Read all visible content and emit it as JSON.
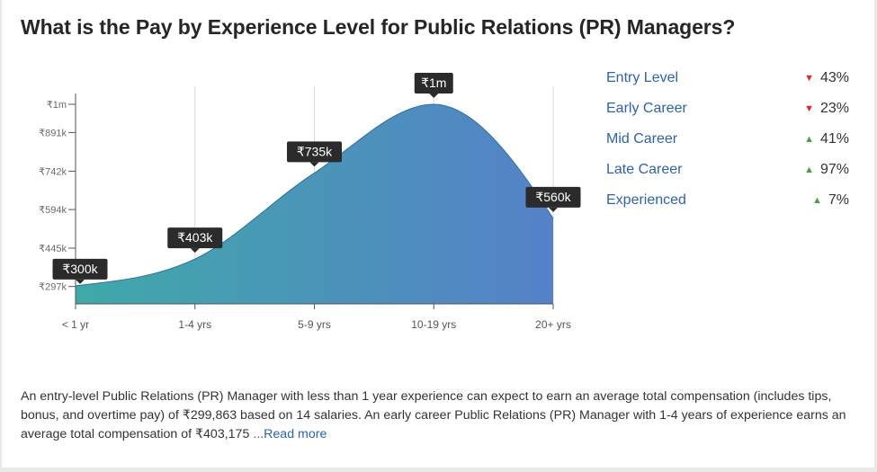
{
  "page": {
    "title": "What is the Pay by Experience Level for Public Relations (PR) Managers?"
  },
  "chart_data": {
    "type": "area",
    "x": [
      "< 1 yr",
      "1-4 yrs",
      "5-9 yrs",
      "10-19 yrs",
      "20+ yrs"
    ],
    "values": [
      299863,
      403175,
      735000,
      1000000,
      560000
    ],
    "point_labels": [
      "₹300k",
      "₹403k",
      "₹735k",
      "₹1m",
      "₹560k"
    ],
    "y_ticks": [
      {
        "value": 297000,
        "label": "₹297k"
      },
      {
        "value": 445000,
        "label": "₹445k"
      },
      {
        "value": 594000,
        "label": "₹594k"
      },
      {
        "value": 742000,
        "label": "₹742k"
      },
      {
        "value": 891000,
        "label": "₹891k"
      },
      {
        "value": 1000000,
        "label": "₹1m"
      }
    ],
    "ylim": [
      230000,
      1000000
    ],
    "grid": "vertical",
    "gradient": [
      "#3fa9a8",
      "#5581c8"
    ]
  },
  "legend": [
    {
      "label": "Entry Level",
      "direction": "down",
      "change": "43%"
    },
    {
      "label": "Early Career",
      "direction": "down",
      "change": "23%"
    },
    {
      "label": "Mid Career",
      "direction": "up",
      "change": "41%"
    },
    {
      "label": "Late Career",
      "direction": "up",
      "change": "97%"
    },
    {
      "label": "Experienced",
      "direction": "up",
      "change": "7%"
    }
  ],
  "description": {
    "text": "An entry-level Public Relations (PR) Manager with less than 1 year experience can expect to earn an average total compensation (includes tips, bonus, and overtime pay) of ₹299,863 based on 14 salaries. An early career Public Relations (PR) Manager with 1-4 years of experience earns an average total compensation of ₹403,175",
    "read_more": "...Read more"
  },
  "colors": {
    "link": "#2f62a8",
    "down": "#d32f2f",
    "up": "#43a047",
    "tooltip_bg": "#2b2b2b"
  }
}
